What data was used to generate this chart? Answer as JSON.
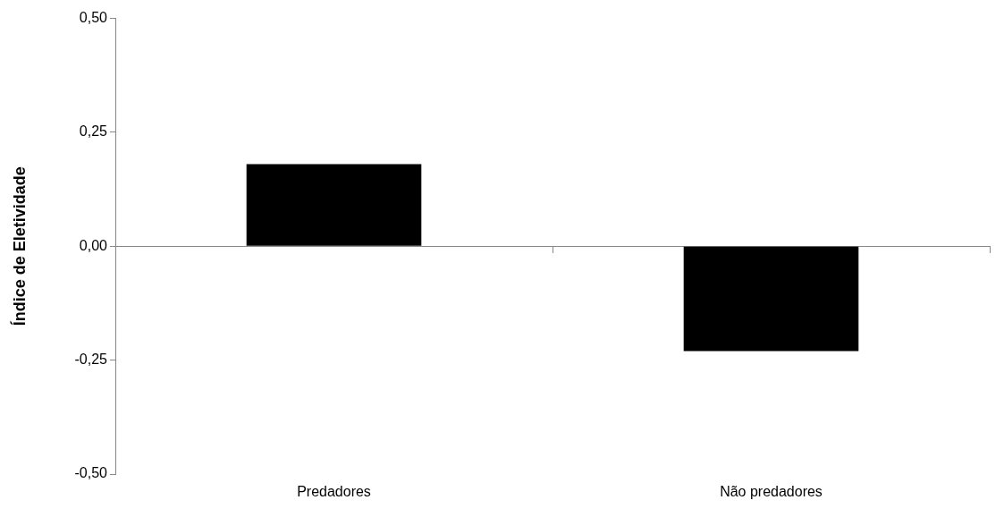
{
  "chart_data": {
    "type": "bar",
    "ylabel": "Índice de Eletividade",
    "categories": [
      "Predadores",
      "Não predadores"
    ],
    "values": [
      0.18,
      -0.23
    ],
    "color": "#000000",
    "ylim": [
      -0.5,
      0.5
    ],
    "yticks": [
      {
        "value": -0.5,
        "label": "-0,50"
      },
      {
        "value": -0.25,
        "label": "-0,25"
      },
      {
        "value": 0,
        "label": "0,00"
      },
      {
        "value": 0.25,
        "label": "0,25"
      },
      {
        "value": 0.5,
        "label": "0,50"
      }
    ],
    "legend": false
  }
}
